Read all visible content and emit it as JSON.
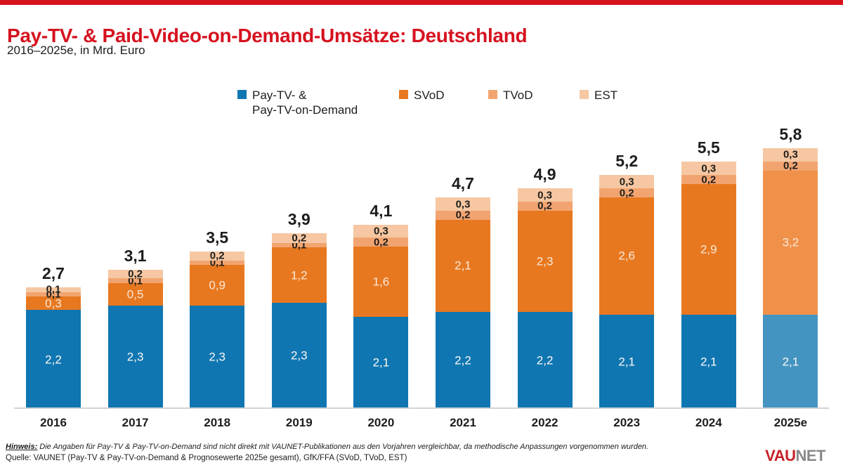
{
  "header": {
    "title": "Pay-TV- & Paid-Video-on-Demand-Umsätze: Deutschland",
    "subtitle": "2016–2025e, in Mrd. Euro"
  },
  "legend": {
    "items": [
      {
        "key": "pay_tv",
        "label_line1": "Pay-TV- &",
        "label_line2": "Pay-TV-on-Demand"
      },
      {
        "key": "svod",
        "label": "SVoD"
      },
      {
        "key": "tvod",
        "label": "TVoD"
      },
      {
        "key": "est",
        "label": "EST"
      }
    ]
  },
  "chart_data": {
    "type": "bar",
    "stacked": true,
    "title": "Pay-TV- & Paid-Video-on-Demand-Umsätze: Deutschland",
    "unit": "Mrd. Euro",
    "categories": [
      "2016",
      "2017",
      "2018",
      "2019",
      "2020",
      "2021",
      "2022",
      "2023",
      "2024",
      "2025e"
    ],
    "totals": [
      2.7,
      3.1,
      3.5,
      3.9,
      4.1,
      4.7,
      4.9,
      5.2,
      5.5,
      5.8
    ],
    "total_labels": [
      "2,7",
      "3,1",
      "3,5",
      "3,9",
      "4,1",
      "4,7",
      "4,9",
      "5,2",
      "5,5",
      "5,8"
    ],
    "series": [
      {
        "key": "pay_tv",
        "name": "Pay-TV- & Pay-TV-on-Demand",
        "values": [
          2.2,
          2.3,
          2.3,
          2.3,
          2.1,
          2.2,
          2.2,
          2.1,
          2.1,
          2.1
        ],
        "labels": [
          "2,2",
          "2,3",
          "2,3",
          "2,3",
          "2,1",
          "2,2",
          "2,2",
          "2,1",
          "2,1",
          "2,1"
        ]
      },
      {
        "key": "svod",
        "name": "SVoD",
        "values": [
          0.3,
          0.5,
          0.9,
          1.2,
          1.6,
          2.1,
          2.3,
          2.6,
          2.9,
          3.2
        ],
        "labels": [
          "0,3",
          "0,5",
          "0,9",
          "1,2",
          "1,6",
          "2,1",
          "2,3",
          "2,6",
          "2,9",
          "3,2"
        ]
      },
      {
        "key": "tvod",
        "name": "TVoD",
        "values": [
          0.1,
          0.1,
          0.1,
          0.1,
          0.2,
          0.2,
          0.2,
          0.2,
          0.2,
          0.2
        ],
        "labels": [
          "0,1",
          "0,1",
          "0,1",
          "0,1",
          "0,2",
          "0,2",
          "0,2",
          "0,2",
          "0,2",
          "0,2"
        ]
      },
      {
        "key": "est",
        "name": "EST",
        "values": [
          0.1,
          0.2,
          0.2,
          0.2,
          0.3,
          0.3,
          0.3,
          0.3,
          0.3,
          0.3
        ],
        "labels": [
          "0,1",
          "0,2",
          "0,2",
          "0,2",
          "0,3",
          "0,3",
          "0,3",
          "0,3",
          "0,3",
          "0,3"
        ]
      }
    ],
    "forecast_index": 9,
    "forecast_category": "2025e",
    "ylim": [
      0,
      6
    ],
    "grid": false,
    "legend_position": "top"
  },
  "colors": {
    "brand_red": "#d6121f",
    "pay_tv": "#0f76b2",
    "svod": "#e8781f",
    "tvod": "#f2a470",
    "est": "#f6c7a2",
    "pay_tv_forecast": "#4494c1",
    "svod_forecast": "#f0914a",
    "axis_gray": "#d2d2d2",
    "logo_red": "#c52127",
    "logo_gray": "#87888a"
  },
  "footer": {
    "hinweis_label": "Hinweis:",
    "hinweis_text": " Die Angaben für Pay-TV & Pay-TV-on-Demand sind nicht direkt mit VAUNET-Publikationen aus den Vorjahren vergleichbar, da methodische Anpassungen vorgenommen wurden.",
    "quelle": "Quelle: VAUNET (Pay-TV & Pay-TV-on-Demand & Prognosewerte 2025e gesamt), GfK/FFA (SVoD, TVoD, EST)",
    "logo": {
      "part_red": "VAU",
      "part_gray": "NET"
    }
  }
}
